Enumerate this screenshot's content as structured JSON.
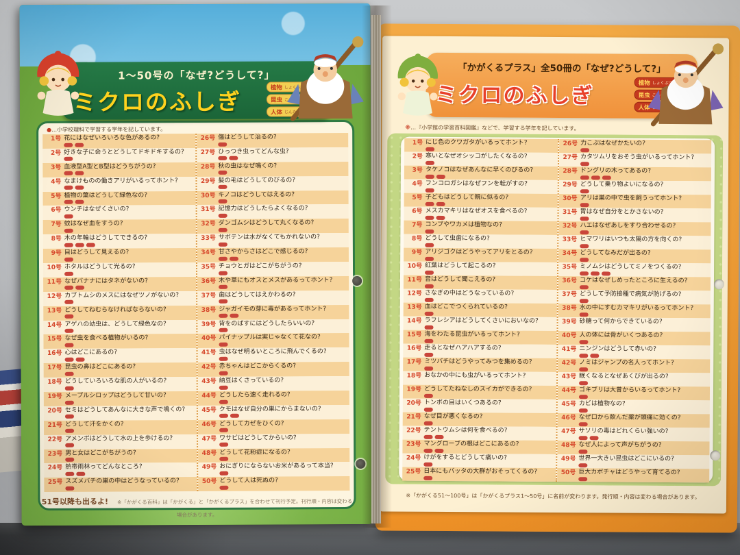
{
  "colors": {
    "left_header_green": "#1e6f3e",
    "left_title_yellow": "#ffd21e",
    "right_header_orange": "#f29b3e",
    "right_title_red": "#e8402a",
    "stripe_orange": "#f6d39a",
    "stripe_cream": "#fcf0d8",
    "grade_tag_red": "#c9453a"
  },
  "left_page": {
    "header": {
      "top_label": "1〜50号の「なぜ?どうして?」",
      "title": "ミクロのふしぎ",
      "legend": [
        {
          "label": "植物",
          "ruby": "しょくぶつ"
        },
        {
          "label": "昆虫",
          "ruby": "こんちゅう"
        },
        {
          "label": "人体",
          "ruby": "じんたい"
        }
      ]
    },
    "note": "…小学校理科で学習する学年を記しています。",
    "note_mark": "●",
    "entries_col1": [
      {
        "no": "1号",
        "q": "花にはなぜいろいろな色があるの?",
        "t": 2
      },
      {
        "no": "2号",
        "q": "好きな子に会うとどうしてドキドキするの?",
        "t": 1
      },
      {
        "no": "3号",
        "q": "血液型A型とB型はどうちがうの?",
        "t": 2
      },
      {
        "no": "4号",
        "q": "なまけものの働きアリがいるってホント?",
        "t": 2
      },
      {
        "no": "5号",
        "q": "植物の葉はどうして緑色なの?",
        "t": 2
      },
      {
        "no": "6号",
        "q": "ウンチはなぜくさいの?",
        "t": 1
      },
      {
        "no": "7号",
        "q": "蚊はなぜ血をすうの?",
        "t": 1
      },
      {
        "no": "8号",
        "q": "木の年輪はどうしてできるの?",
        "t": 3
      },
      {
        "no": "9号",
        "q": "目はどうして見えるの?",
        "t": 1
      },
      {
        "no": "10号",
        "q": "ホタルはどうして光るの?",
        "t": 1
      },
      {
        "no": "11号",
        "q": "なぜバナナにはタネがないの?",
        "t": 2
      },
      {
        "no": "12号",
        "q": "カブトムシのメスにはなぜツノがないの?",
        "t": 1
      },
      {
        "no": "13号",
        "q": "どうしてねむらなければならないの?",
        "t": 1
      },
      {
        "no": "14号",
        "q": "アゲハの幼虫は、どうして緑色なの?",
        "t": 1
      },
      {
        "no": "15号",
        "q": "なぜ虫を食べる植物がいるの?",
        "t": 1
      },
      {
        "no": "16号",
        "q": "心はどこにあるの?",
        "t": 2
      },
      {
        "no": "17号",
        "q": "昆虫の鼻はどこにあるの?",
        "t": 1
      },
      {
        "no": "18号",
        "q": "どうしていろいろな肌の人がいるの?",
        "t": 1
      },
      {
        "no": "19号",
        "q": "メープルシロップはどうして甘いの?",
        "t": 1
      },
      {
        "no": "20号",
        "q": "セミはどうしてあんなに大きな声で鳴くの?",
        "t": 1
      },
      {
        "no": "21号",
        "q": "どうして汗をかくの?",
        "t": 1
      },
      {
        "no": "22号",
        "q": "アメンボはどうして水の上を歩けるの?",
        "t": 1
      },
      {
        "no": "23号",
        "q": "男と女はどこがちがうの?",
        "t": 1
      },
      {
        "no": "24号",
        "q": "熱帯雨林ってどんなところ?",
        "t": 2
      },
      {
        "no": "25号",
        "q": "スズメバチの巣の中はどうなっているの?",
        "t": 1
      }
    ],
    "entries_col2": [
      {
        "no": "26号",
        "q": "傷はどうして治るの?",
        "t": 1
      },
      {
        "no": "27号",
        "q": "ひっつき虫ってどんな虫?",
        "t": 2
      },
      {
        "no": "28号",
        "q": "秋の虫はなぜ鳴くの?",
        "t": 1
      },
      {
        "no": "29号",
        "q": "髪の毛はどうしてのびるの?",
        "t": 1
      },
      {
        "no": "30号",
        "q": "キノコはどうしてはえるの?",
        "t": 1
      },
      {
        "no": "31号",
        "q": "記憶力はどうしたらよくなるの?",
        "t": 1
      },
      {
        "no": "32号",
        "q": "ダンゴムシはどうして丸くなるの?",
        "t": 1
      },
      {
        "no": "33号",
        "q": "サボテンは水がなくてもかれないの?",
        "t": 1
      },
      {
        "no": "34号",
        "q": "甘さやからさはどこで感じるの?",
        "t": 2
      },
      {
        "no": "35号",
        "q": "チョウとガはどこがちがうの?",
        "t": 1
      },
      {
        "no": "36号",
        "q": "木や草にもオスとメスがあるってホント?",
        "t": 1
      },
      {
        "no": "37号",
        "q": "歯はどうしてはえかわるの?",
        "t": 1
      },
      {
        "no": "38号",
        "q": "ジャガイモの芽に毒があるってホント?",
        "t": 2
      },
      {
        "no": "39号",
        "q": "背をのばすにはどうしたらいいの?",
        "t": 1
      },
      {
        "no": "40号",
        "q": "パイナップルは実じゃなくて花なの?",
        "t": 1
      },
      {
        "no": "41号",
        "q": "虫はなぜ明るいところに飛んでくるの?",
        "t": 1
      },
      {
        "no": "42号",
        "q": "赤ちゃんはどこからくるの?",
        "t": 1
      },
      {
        "no": "43号",
        "q": "納豆はくさっているの?",
        "t": 1
      },
      {
        "no": "44号",
        "q": "どうしたら速く走れるの?",
        "t": 1
      },
      {
        "no": "45号",
        "q": "クモはなぜ自分の巣にからまないの?",
        "t": 2
      },
      {
        "no": "46号",
        "q": "どうしてカゼをひくの?",
        "t": 1
      },
      {
        "no": "47号",
        "q": "ワサビはどうしてからいの?",
        "t": 1
      },
      {
        "no": "48号",
        "q": "どうして花粉症になるの?",
        "t": 1
      },
      {
        "no": "49号",
        "q": "おにぎりにならないお米があるって本当?",
        "t": 1
      },
      {
        "no": "50号",
        "q": "どうして人は死ぬの?",
        "t": 1
      }
    ],
    "footer_main": "51号以降も出るよ!",
    "footer_note": "※「かがくる百科」は「かがくる」と「かがくるプラス」を合わせて刊行予定。刊行順・内容は変わる場合があります。"
  },
  "right_page": {
    "header": {
      "top_label": "「かがくるプラス」全50冊の「なぜ?どうして?」",
      "title": "ミクロのふしぎ",
      "legend": [
        {
          "label": "植物",
          "ruby": "しょくぶつ"
        },
        {
          "label": "昆虫",
          "ruby": "こんちゅう"
        },
        {
          "label": "人体",
          "ruby": "じんたい"
        }
      ]
    },
    "note": "…『小学館の学習百科図鑑』などで、学習する学年を記しています。",
    "note_mark": "※",
    "entries_col1": [
      {
        "no": "1号",
        "q": "にじ色のクワガタがいるってホント?",
        "t": 1
      },
      {
        "no": "2号",
        "q": "寒いとなぜオシッコがしたくなるの?",
        "t": 1
      },
      {
        "no": "3号",
        "q": "タケノコはなぜあんなに早くのびるの?",
        "t": 2
      },
      {
        "no": "4号",
        "q": "フンコロガシはなぜフンを転がすの?",
        "t": 1
      },
      {
        "no": "5号",
        "q": "子どもはどうして親に似るの?",
        "t": 2
      },
      {
        "no": "6号",
        "q": "メスカマキリはなぜオスを食べるの?",
        "t": 2
      },
      {
        "no": "7号",
        "q": "コンブやワカメは植物なの?",
        "t": 1
      },
      {
        "no": "8号",
        "q": "どうして虫歯になるの?",
        "t": 1
      },
      {
        "no": "9号",
        "q": "アリジゴクはどうやってアリをとるの?",
        "t": 1
      },
      {
        "no": "10号",
        "q": "紅葉はどうして起こるの?",
        "t": 1
      },
      {
        "no": "11号",
        "q": "音はどうして聞こえるの?",
        "t": 1
      },
      {
        "no": "12号",
        "q": "さなぎの中はどうなっているの?",
        "t": 1
      },
      {
        "no": "13号",
        "q": "血はどこでつくられているの?",
        "t": 1
      },
      {
        "no": "14号",
        "q": "ラフレシアはどうしてくさいにおいなの?",
        "t": 1
      },
      {
        "no": "15号",
        "q": "海をわたる昆虫がいるってホント?",
        "t": 1
      },
      {
        "no": "16号",
        "q": "走るとなぜハアハアするの?",
        "t": 1
      },
      {
        "no": "17号",
        "q": "ミツバチはどうやってみつを集めるの?",
        "t": 1
      },
      {
        "no": "18号",
        "q": "おなかの中にも虫がいるってホント?",
        "t": 0
      },
      {
        "no": "19号",
        "q": "どうしてたねなしのスイカができるの?",
        "t": 1
      },
      {
        "no": "20号",
        "q": "トンボの目はいくつあるの?",
        "t": 1
      },
      {
        "no": "21号",
        "q": "なぜ目が悪くなるの?",
        "t": 1
      },
      {
        "no": "22号",
        "q": "テントウムシは何を食べるの?",
        "t": 2
      },
      {
        "no": "23号",
        "q": "マングローブの根はどこにあるの?",
        "t": 2
      },
      {
        "no": "24号",
        "q": "けがをするとどうして痛いの?",
        "t": 1
      },
      {
        "no": "25号",
        "q": "日本にもバッタの大群がおそってくるの?",
        "t": 1
      }
    ],
    "entries_col2": [
      {
        "no": "26号",
        "q": "力こぶはなぜかたいの?",
        "t": 1
      },
      {
        "no": "27号",
        "q": "カタツムリをおそう虫がいるってホント?",
        "t": 1
      },
      {
        "no": "28号",
        "q": "ドングリの木ってあるの?",
        "t": 3
      },
      {
        "no": "29号",
        "q": "どうして乗り物よいになるの?",
        "t": 1
      },
      {
        "no": "30号",
        "q": "アリは巣の中で虫を飼うってホント?",
        "t": 1
      },
      {
        "no": "31号",
        "q": "胃はなぜ自分をとかさないの?",
        "t": 1
      },
      {
        "no": "32号",
        "q": "ハエはなぜあしをすり合わせるの?",
        "t": 1
      },
      {
        "no": "33号",
        "q": "ヒマワリはいつも太陽の方を向くの?",
        "t": 1
      },
      {
        "no": "34号",
        "q": "どうしてなみだが出るの?",
        "t": 1
      },
      {
        "no": "35号",
        "q": "ミノムシはどうしてミノをつくるの?",
        "t": 3
      },
      {
        "no": "36号",
        "q": "コケはなぜしめったところに生えるの?",
        "t": 1
      },
      {
        "no": "37号",
        "q": "どうして予防接種で病気が防げるの?",
        "t": 1
      },
      {
        "no": "38号",
        "q": "水の中にすむカマキリがいるってホント?",
        "t": 1
      },
      {
        "no": "39号",
        "q": "砂糖って何からできているの?",
        "t": 0
      },
      {
        "no": "40号",
        "q": "人の体には骨がいくつあるの?",
        "t": 1
      },
      {
        "no": "41号",
        "q": "ニンジンはどうして赤いの?",
        "t": 2
      },
      {
        "no": "42号",
        "q": "ノミはジャンプの名人ってホント?",
        "t": 1
      },
      {
        "no": "43号",
        "q": "眠くなるとなぜあくびが出るの?",
        "t": 1
      },
      {
        "no": "44号",
        "q": "ゴキブリは大昔からいるってホント?",
        "t": 1
      },
      {
        "no": "45号",
        "q": "カビは植物なの?",
        "t": 1
      },
      {
        "no": "46号",
        "q": "なぜ口から飲んだ薬が頭痛に効くの?",
        "t": 1
      },
      {
        "no": "47号",
        "q": "サソリの毒はどれくらい強いの?",
        "t": 2
      },
      {
        "no": "48号",
        "q": "なぜ人によって声がちがうの?",
        "t": 1
      },
      {
        "no": "49号",
        "q": "世界一大きい昆虫はどこにいるの?",
        "t": 1
      },
      {
        "no": "50号",
        "q": "巨大カボチャはどうやって育てるの?",
        "t": 1
      }
    ],
    "footer_note": "※「かがくる51〜100号」は「かがくるプラス1〜50号」に名前が変わります。発行順・内容は変わる場合があります。"
  }
}
